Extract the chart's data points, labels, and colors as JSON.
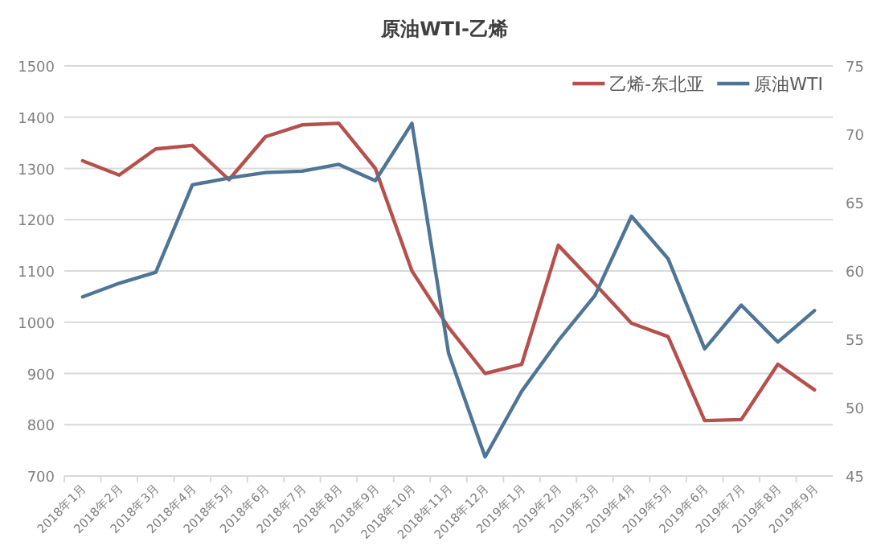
{
  "chart_data": {
    "type": "line",
    "title": "原油WTI-乙烯",
    "categories": [
      "2018年1月",
      "2018年2月",
      "2018年3月",
      "2018年4月",
      "2018年5月",
      "2018年6月",
      "2018年7月",
      "2018年8月",
      "2018年9月",
      "2018年10月",
      "2018年11月",
      "2018年12月",
      "2019年1月",
      "2019年2月",
      "2019年3月",
      "2019年4月",
      "2019年5月",
      "2019年6月",
      "2019年7月",
      "2019年8月",
      "2019年9月"
    ],
    "series": [
      {
        "name": "乙烯-东北亚",
        "color": "#b5504c",
        "values": [
          1315,
          1287,
          1338,
          1345,
          1278,
          1362,
          1385,
          1388,
          1300,
          1100,
          990,
          900,
          918,
          1150,
          1075,
          998,
          972,
          808,
          810,
          918,
          868
        ]
      },
      {
        "name": "原油WTI",
        "color": "#4f7596",
        "axis": "y2",
        "values": [
          58.1,
          59.1,
          59.9,
          66.3,
          66.8,
          67.2,
          67.3,
          67.8,
          66.6,
          70.8,
          54.0,
          46.4,
          51.2,
          54.9,
          58.2,
          64.0,
          60.9,
          54.3,
          57.5,
          54.8,
          57.1
        ]
      }
    ],
    "ylim": [
      700,
      1500
    ],
    "yticks": [
      700,
      800,
      900,
      1000,
      1100,
      1200,
      1300,
      1400,
      1500
    ],
    "y2lim": [
      45,
      75
    ],
    "y2ticks": [
      45,
      50,
      55,
      60,
      65,
      70,
      75
    ],
    "grid": "y",
    "legend": "top right",
    "marker": "none",
    "line_style": "solid"
  }
}
